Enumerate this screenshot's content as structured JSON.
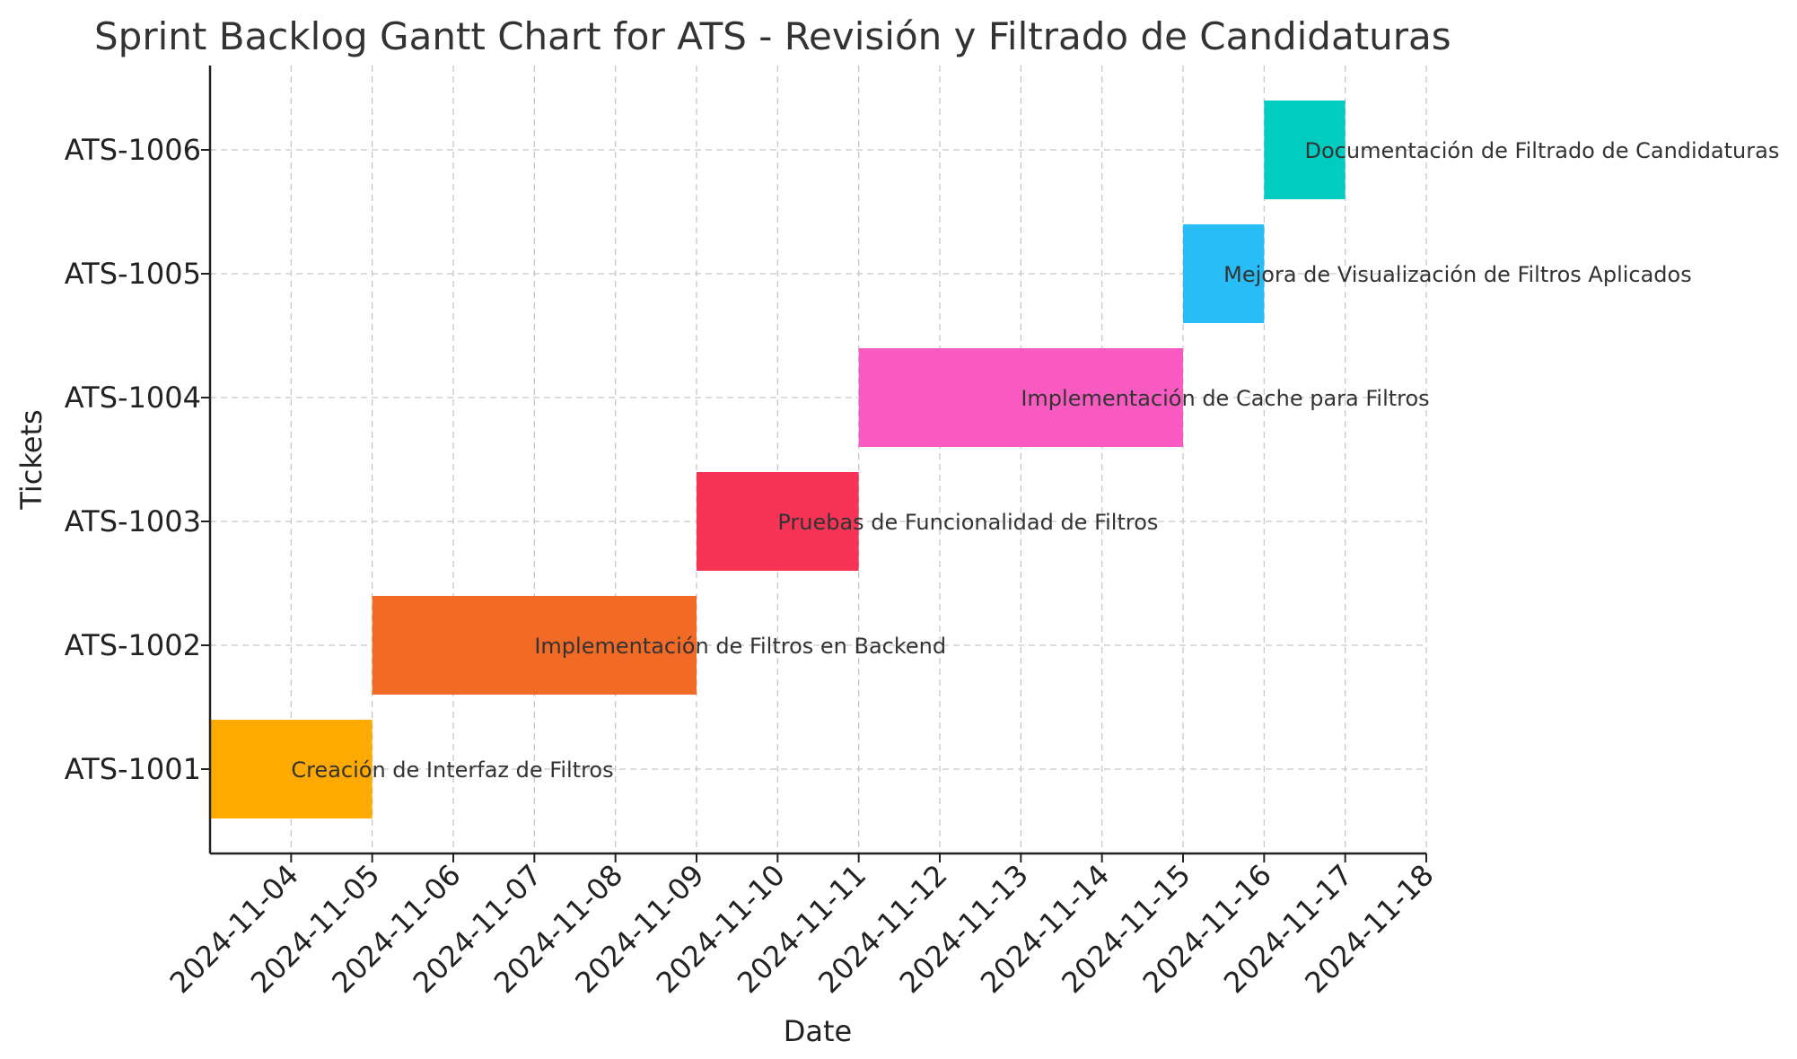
{
  "chart_data": {
    "type": "gantt",
    "title": "Sprint Backlog Gantt Chart for ATS - Revisión y Filtrado de Candidaturas",
    "xlabel": "Date",
    "ylabel": "Tickets",
    "x_ticks": [
      "2024-11-04",
      "2024-11-05",
      "2024-11-06",
      "2024-11-07",
      "2024-11-08",
      "2024-11-09",
      "2024-11-10",
      "2024-11-11",
      "2024-11-12",
      "2024-11-13",
      "2024-11-14",
      "2024-11-15",
      "2024-11-16",
      "2024-11-17",
      "2024-11-18"
    ],
    "xlim": [
      "2024-11-03",
      "2024-11-18"
    ],
    "grid": true,
    "tasks": [
      {
        "ticket": "ATS-1001",
        "name": "Creación de Interfaz de Filtros",
        "start": "2024-11-03",
        "end": "2024-11-05",
        "color": "#FFAA00"
      },
      {
        "ticket": "ATS-1002",
        "name": "Implementación de Filtros en Backend",
        "start": "2024-11-05",
        "end": "2024-11-09",
        "color": "#F26B26"
      },
      {
        "ticket": "ATS-1003",
        "name": "Pruebas de Funcionalidad de Filtros",
        "start": "2024-11-09",
        "end": "2024-11-11",
        "color": "#F73455"
      },
      {
        "ticket": "ATS-1004",
        "name": "Implementación de Cache para Filtros",
        "start": "2024-11-11",
        "end": "2024-11-15",
        "color": "#F85AC1"
      },
      {
        "ticket": "ATS-1005",
        "name": "Mejora de Visualización de Filtros Aplicados",
        "start": "2024-11-15",
        "end": "2024-11-16",
        "color": "#29BDF7"
      },
      {
        "ticket": "ATS-1006",
        "name": "Documentación de Filtrado de Candidaturas",
        "start": "2024-11-16",
        "end": "2024-11-17",
        "color": "#00CCBF"
      }
    ]
  }
}
